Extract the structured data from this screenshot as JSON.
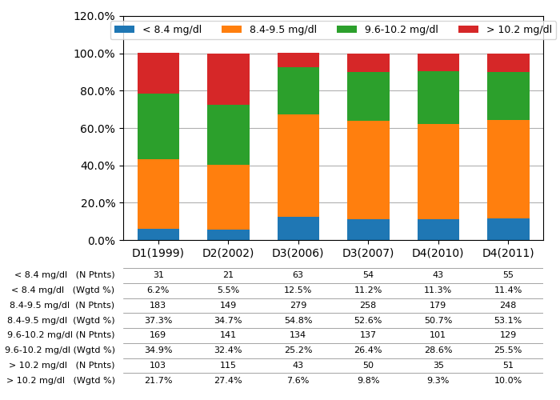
{
  "chart_data": {
    "type": "bar",
    "stacked": true,
    "categories": [
      "D1(1999)",
      "D2(2002)",
      "D3(2006)",
      "D3(2007)",
      "D4(2010)",
      "D4(2011)"
    ],
    "series": [
      {
        "name": "< 8.4 mg/dl",
        "values": [
          6.2,
          5.5,
          12.5,
          11.2,
          11.3,
          11.4
        ]
      },
      {
        "name": "8.4-9.5 mg/dl",
        "values": [
          37.3,
          34.7,
          54.8,
          52.6,
          50.7,
          53.1
        ]
      },
      {
        "name": "9.6-10.2 mg/dl",
        "values": [
          34.9,
          32.4,
          25.2,
          26.4,
          28.6,
          25.5
        ]
      },
      {
        "name": "> 10.2 mg/dl",
        "values": [
          21.7,
          27.4,
          7.6,
          9.8,
          9.3,
          10.0
        ]
      }
    ],
    "ylim": [
      0,
      120
    ],
    "yticks": [
      {
        "value": 0,
        "label": "0.0%"
      },
      {
        "value": 20,
        "label": "20.0%"
      },
      {
        "value": 40,
        "label": "40.0%"
      },
      {
        "value": 60,
        "label": "60.0%"
      },
      {
        "value": 80,
        "label": "80.0%"
      },
      {
        "value": 100,
        "label": "100.0%"
      },
      {
        "value": 120,
        "label": "120.0%"
      }
    ],
    "grid": true,
    "legend": "upper center",
    "table": {
      "row_labels": [
        "< 8.4 mg/dl   (N Ptnts)",
        "< 8.4 mg/dl   (Wgtd %)",
        "8.4-9.5 mg/dl  (N Ptnts)",
        "8.4-9.5 mg/dl  (Wgtd %)",
        "9.6-10.2 mg/dl (N Ptnts)",
        "9.6-10.2 mg/dl (Wgtd %)",
        "> 10.2 mg/dl   (N Ptnts)",
        "> 10.2 mg/dl   (Wgtd %)"
      ],
      "rows": [
        [
          "31",
          "21",
          "63",
          "54",
          "43",
          "55"
        ],
        [
          "6.2%",
          "5.5%",
          "12.5%",
          "11.2%",
          "11.3%",
          "11.4%"
        ],
        [
          "183",
          "149",
          "279",
          "258",
          "179",
          "248"
        ],
        [
          "37.3%",
          "34.7%",
          "54.8%",
          "52.6%",
          "50.7%",
          "53.1%"
        ],
        [
          "169",
          "141",
          "134",
          "137",
          "101",
          "129"
        ],
        [
          "34.9%",
          "32.4%",
          "25.2%",
          "26.4%",
          "28.6%",
          "25.5%"
        ],
        [
          "103",
          "115",
          "43",
          "50",
          "35",
          "51"
        ],
        [
          "21.7%",
          "27.4%",
          "7.6%",
          "9.8%",
          "9.3%",
          "10.0%"
        ]
      ]
    }
  }
}
